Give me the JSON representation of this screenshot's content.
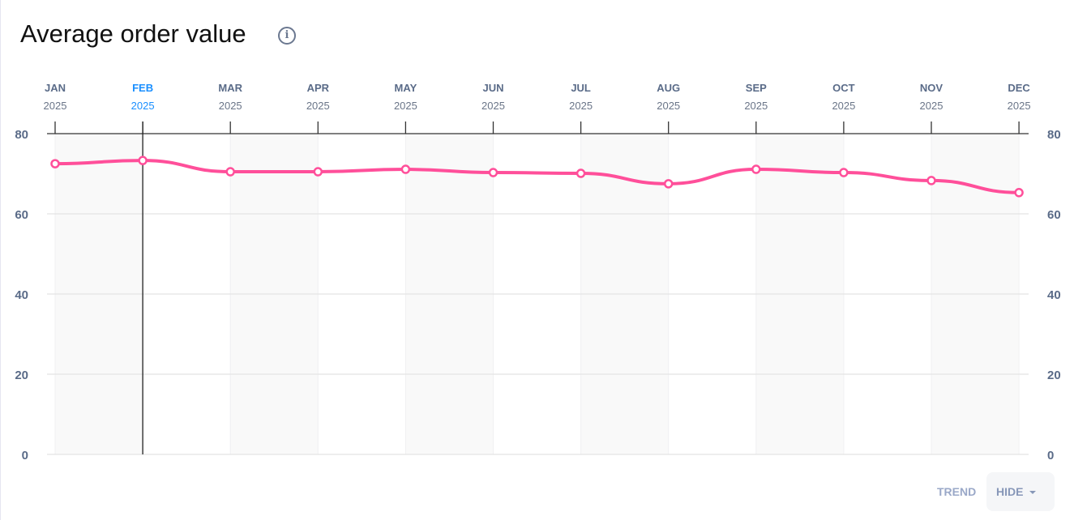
{
  "chart_data": {
    "type": "line",
    "title": "Average order value",
    "categories": [
      "JAN",
      "FEB",
      "MAR",
      "APR",
      "MAY",
      "JUN",
      "JUL",
      "AUG",
      "SEP",
      "OCT",
      "NOV",
      "DEC"
    ],
    "year_labels": [
      "2025",
      "2025",
      "2025",
      "2025",
      "2025",
      "2025",
      "2025",
      "2025",
      "2025",
      "2025",
      "2025",
      "2025"
    ],
    "highlighted_index": 1,
    "series": [
      {
        "name": "Average order value",
        "values": [
          72.5,
          73.3,
          70.5,
          70.5,
          71.1,
          70.3,
          70.1,
          67.5,
          71.1,
          70.3,
          68.3,
          65.3
        ]
      }
    ],
    "yticks": [
      0,
      20,
      40,
      60,
      80
    ],
    "ylim": [
      0,
      80
    ],
    "grid": true,
    "colors": {
      "line": "#ff4f9a",
      "highlight": "#1a8fff",
      "axis_text": "#5a6b88"
    }
  },
  "controls": {
    "trend_label": "TREND",
    "hide_label": "HIDE"
  },
  "info_icon_glyph": "i"
}
